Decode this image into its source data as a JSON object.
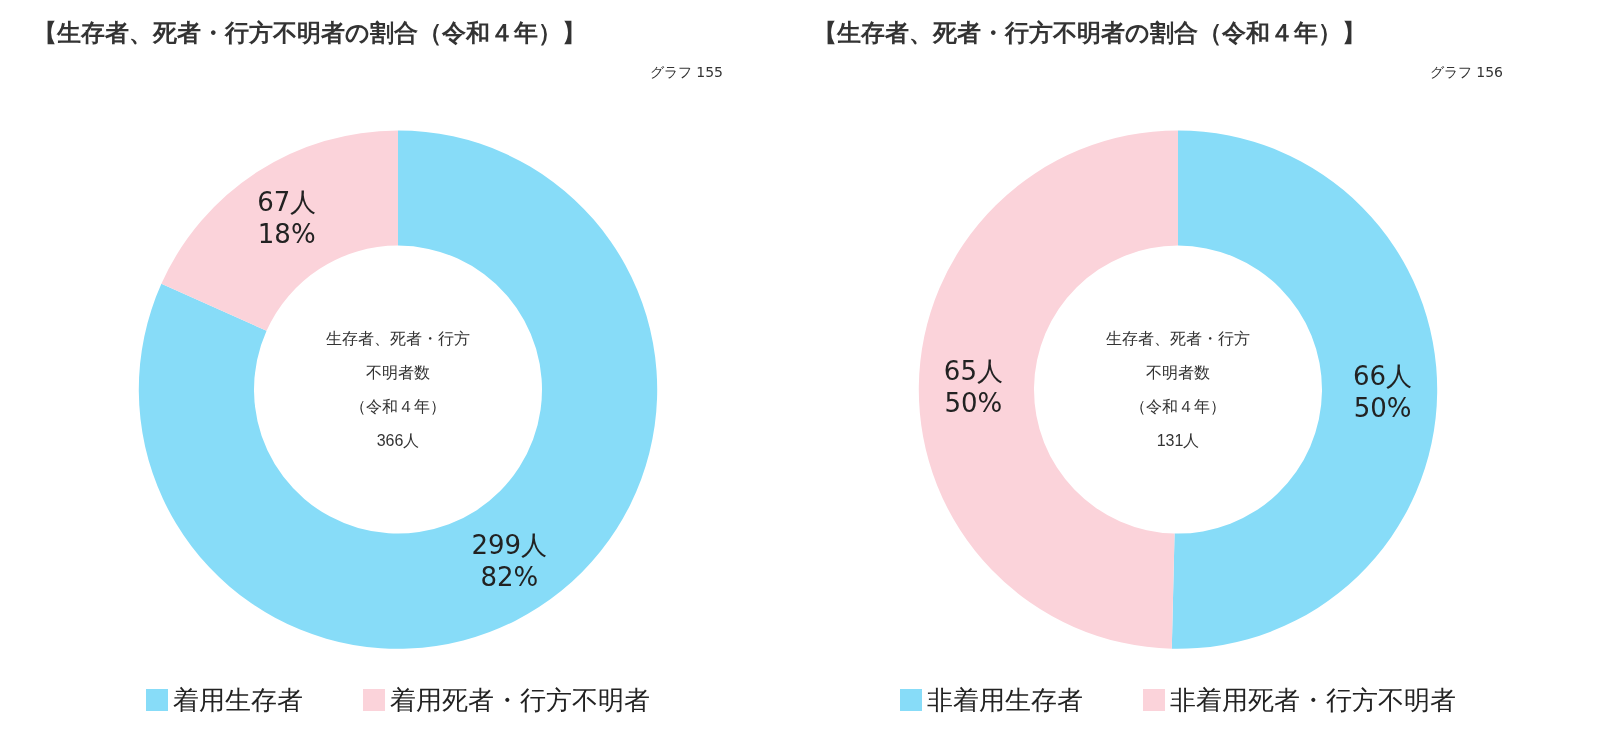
{
  "chart_data": [
    {
      "type": "donut",
      "title": "【生存者、死者・行方不明者の割合（令和４年）】",
      "subtitle": "グラフ 155",
      "categories": [
        "着用生存者",
        "着用死者・行方不明者"
      ],
      "values": [
        299,
        67
      ],
      "colors": [
        "#87dcf8",
        "#fbd3da"
      ],
      "value_labels": [
        "299人\n\n82%",
        "67人\n\n18%"
      ],
      "annotations": [
        "生存者、死者・行方",
        "不明者数",
        "（令和４年）",
        "366人"
      ],
      "legend": "bottom"
    },
    {
      "type": "donut",
      "title": "【生存者、死者・行方不明者の割合（令和４年）】",
      "subtitle": "グラフ 156",
      "categories": [
        "非着用生存者",
        "非着用死者・行方不明者"
      ],
      "values": [
        66,
        65
      ],
      "colors": [
        "#87dcf8",
        "#fbd3da"
      ],
      "value_labels": [
        "66人\n\n50%",
        "65人\n\n50%"
      ],
      "annotations": [
        "生存者、死者・行方",
        "不明者数",
        "（令和４年）",
        "131人"
      ],
      "legend": "bottom"
    }
  ]
}
